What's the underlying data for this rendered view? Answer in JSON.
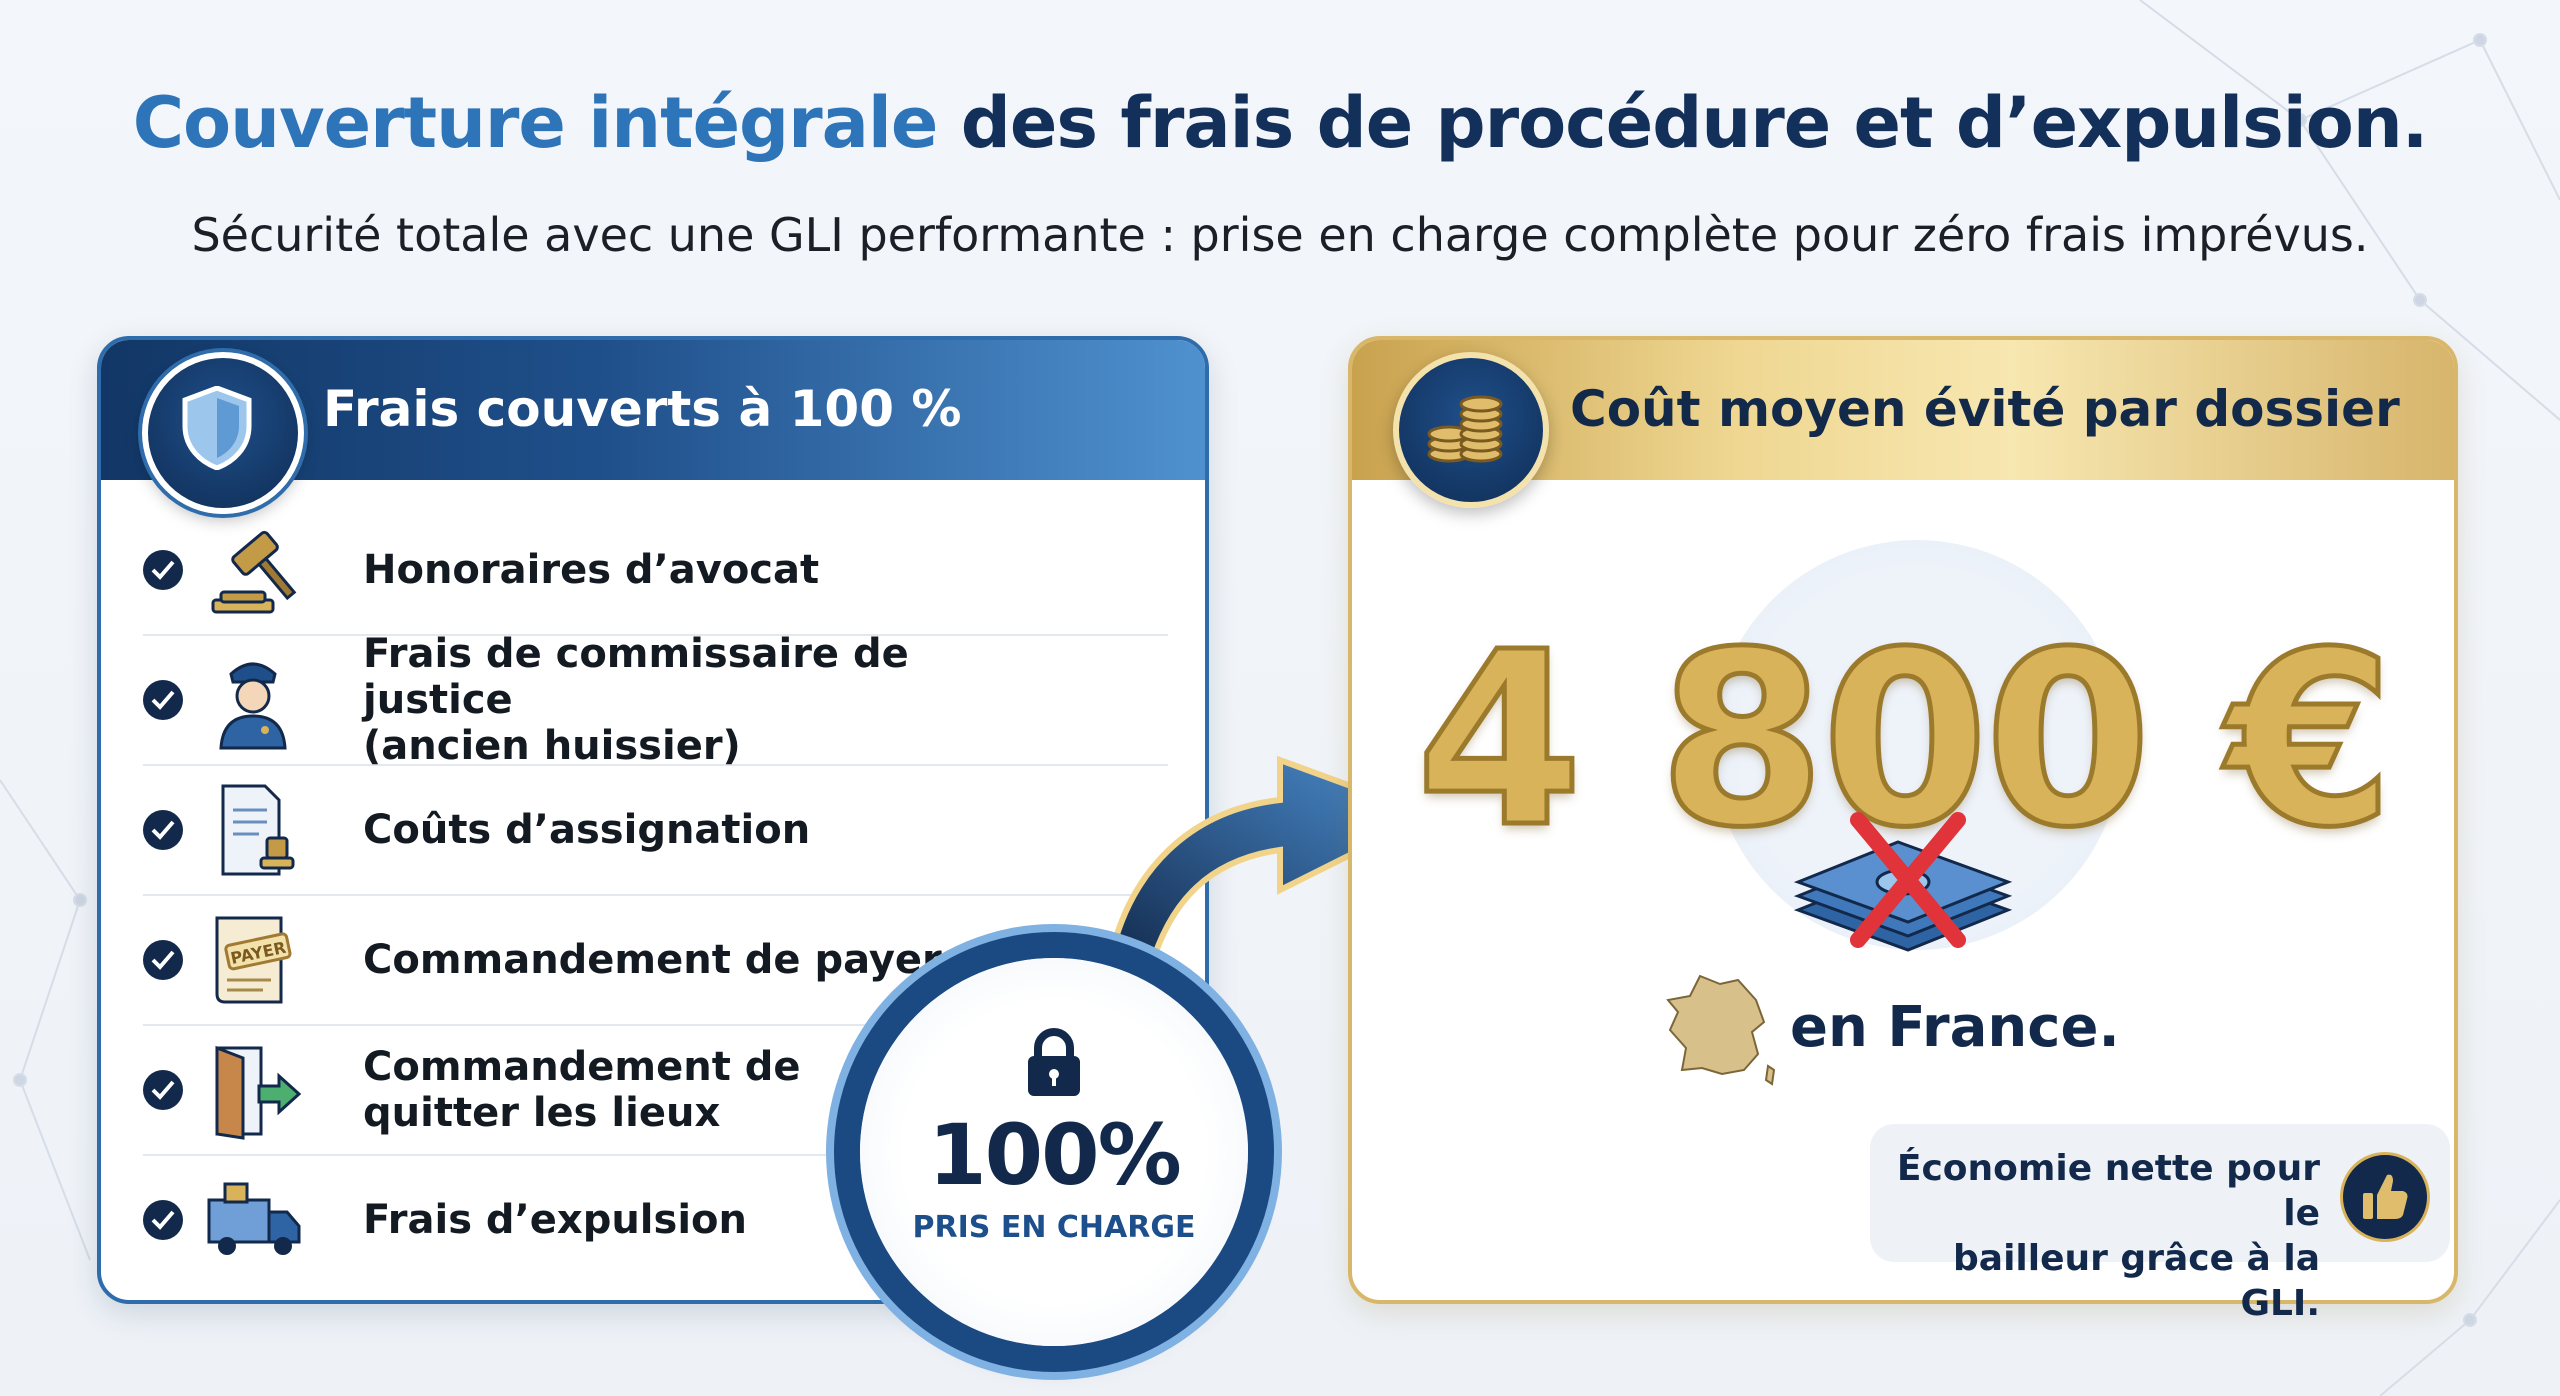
{
  "title": {
    "accent": "Couverture intégrale",
    "rest": " des frais de procédure et d’expulsion."
  },
  "subtitle": "Sécurité totale avec une GLI performante : prise en charge complète pour zéro frais imprévus.",
  "left_card": {
    "title": "Frais couverts à 100 %",
    "icon": "shield-icon",
    "items": [
      {
        "label": "Honoraires d’avocat",
        "icon": "gavel-icon"
      },
      {
        "label": "Frais de commissaire de justice\n(ancien huissier)",
        "icon": "bailiff-icon"
      },
      {
        "label": "Coûts d’assignation",
        "icon": "document-stamp-icon"
      },
      {
        "label": "Commandement de payer",
        "icon": "payer-scroll-icon",
        "icon_text": "PAYER"
      },
      {
        "label": "Commandement de\nquitter les lieux",
        "icon": "exit-door-icon"
      },
      {
        "label": "Frais d’expulsion",
        "icon": "moving-truck-icon"
      }
    ]
  },
  "badge": {
    "value": "100%",
    "label": "PRIS EN CHARGE",
    "icon": "lock-icon"
  },
  "right_card": {
    "title": "Coût moyen évité par dossier",
    "icon": "coins-icon",
    "amount": "4 800 €",
    "location": "en France.",
    "note": "Économie nette pour le\nbailleur grâce à la GLI.",
    "note_icon": "thumbs-up-icon"
  },
  "colors": {
    "navy": "#12294b",
    "blue_accent": "#2e74b8",
    "gold": "#d9b35a",
    "cross_red": "#e0343a"
  }
}
